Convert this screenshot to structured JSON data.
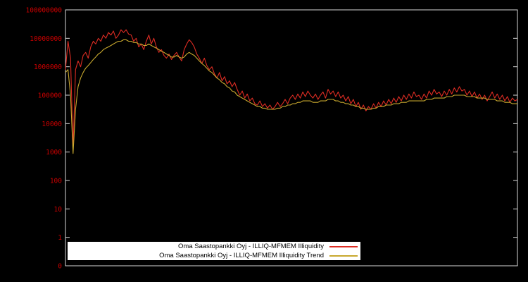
{
  "window": {
    "background_color": "#000000"
  },
  "chart_data": {
    "type": "line",
    "title": "",
    "xlabel": "",
    "ylabel": "",
    "yscale": "log",
    "grid": false,
    "legend_position": "bottom-center",
    "axis_label_color": "#cc0000",
    "plot_border_color": "#d9d9d9",
    "yticks": [
      "100000000",
      "10000000",
      "1000000",
      "100000",
      "10000",
      "1000",
      "100",
      "10",
      "1",
      "0"
    ],
    "xticks": [],
    "series": [
      {
        "name": "Oma Saastopankki Oyj - ILLIQ-MFMEM Illiquidity",
        "color": "#dd2c23",
        "values": [
          790000.0,
          7900000.0,
          2000000.0,
          1300.0,
          790000.0,
          1600000.0,
          1000000.0,
          2500000.0,
          3200000.0,
          2000000.0,
          5000000.0,
          7900000.0,
          6300000.0,
          10000000.0,
          7900000.0,
          13000000.0,
          10000000.0,
          16000000.0,
          13000000.0,
          18000000.0,
          10000000.0,
          13000000.0,
          20000000.0,
          16000000.0,
          20000000.0,
          14000000.0,
          13000000.0,
          7900000.0,
          10000000.0,
          5000000.0,
          6300000.0,
          4000000.0,
          7900000.0,
          13000000.0,
          6300000.0,
          10000000.0,
          5000000.0,
          3200000.0,
          4000000.0,
          2500000.0,
          2000000.0,
          2800000.0,
          1800000.0,
          2500000.0,
          3200000.0,
          2200000.0,
          1600000.0,
          4000000.0,
          6300000.0,
          8900000.0,
          7100000.0,
          5000000.0,
          2800000.0,
          2000000.0,
          1300000.0,
          2000000.0,
          1100000.0,
          790000.0,
          1000000.0,
          560000.0,
          400000.0,
          630000.0,
          320000.0,
          450000.0,
          250000.0,
          320000.0,
          200000.0,
          280000.0,
          160000.0,
          100000.0,
          140000.0,
          79000.0,
          110000.0,
          63000.0,
          79000.0,
          50000.0,
          45000.0,
          63000.0,
          40000.0,
          50000.0,
          35000.0,
          45000.0,
          32000.0,
          40000.0,
          56000.0,
          40000.0,
          50000.0,
          71000.0,
          50000.0,
          79000.0,
          100000.0,
          71000.0,
          110000.0,
          79000.0,
          130000.0,
          89000.0,
          140000.0,
          100000.0,
          79000.0,
          110000.0,
          71000.0,
          100000.0,
          130000.0,
          79000.0,
          160000.0,
          110000.0,
          140000.0,
          89000.0,
          130000.0,
          79000.0,
          100000.0,
          63000.0,
          89000.0,
          50000.0,
          71000.0,
          40000.0,
          56000.0,
          32000.0,
          45000.0,
          28000.0,
          40000.0,
          32000.0,
          50000.0,
          35000.0,
          56000.0,
          40000.0,
          63000.0,
          45000.0,
          71000.0,
          50000.0,
          79000.0,
          56000.0,
          89000.0,
          63000.0,
          100000.0,
          71000.0,
          110000.0,
          79000.0,
          130000.0,
          89000.0,
          100000.0,
          71000.0,
          110000.0,
          79000.0,
          140000.0,
          100000.0,
          160000.0,
          110000.0,
          130000.0,
          89000.0,
          140000.0,
          100000.0,
          160000.0,
          110000.0,
          180000.0,
          130000.0,
          200000.0,
          140000.0,
          160000.0,
          100000.0,
          140000.0,
          89000.0,
          130000.0,
          79000.0,
          110000.0,
          71000.0,
          100000.0,
          63000.0,
          89000.0,
          130000.0,
          79000.0,
          110000.0,
          71000.0,
          100000.0,
          63000.0,
          89000.0,
          56000.0,
          79000.0,
          63000.0,
          71000.0
        ]
      },
      {
        "name": "Oma Saastopankki Oyj - ILLIQ-MFMEM Illiquidity Trend",
        "color": "#c8a82e",
        "values": [
          630000.0,
          790000.0,
          100000.0,
          890.0,
          32000.0,
          200000.0,
          400000.0,
          630000.0,
          890000.0,
          1100000.0,
          1400000.0,
          1800000.0,
          2200000.0,
          2800000.0,
          3200000.0,
          4000000.0,
          4500000.0,
          5000000.0,
          5600000.0,
          6300000.0,
          7100000.0,
          7900000.0,
          7900000.0,
          8900000.0,
          8900000.0,
          7900000.0,
          7900000.0,
          7100000.0,
          7100000.0,
          6300000.0,
          6300000.0,
          5600000.0,
          5600000.0,
          6300000.0,
          5600000.0,
          5000000.0,
          4500000.0,
          4000000.0,
          3500000.0,
          3200000.0,
          2800000.0,
          2500000.0,
          2200000.0,
          2200000.0,
          2500000.0,
          2200000.0,
          2000000.0,
          2200000.0,
          2800000.0,
          3200000.0,
          2800000.0,
          2500000.0,
          2000000.0,
          1600000.0,
          1300000.0,
          1100000.0,
          890000.0,
          710000.0,
          630000.0,
          500000.0,
          400000.0,
          350000.0,
          280000.0,
          250000.0,
          200000.0,
          180000.0,
          140000.0,
          130000.0,
          100000.0,
          89000.0,
          79000.0,
          71000.0,
          63000.0,
          56000.0,
          50000.0,
          45000.0,
          40000.0,
          40000.0,
          35000.0,
          35000.0,
          32000.0,
          32000.0,
          32000.0,
          32000.0,
          35000.0,
          35000.0,
          40000.0,
          40000.0,
          45000.0,
          45000.0,
          50000.0,
          50000.0,
          56000.0,
          56000.0,
          63000.0,
          63000.0,
          63000.0,
          63000.0,
          56000.0,
          56000.0,
          56000.0,
          63000.0,
          63000.0,
          63000.0,
          71000.0,
          71000.0,
          71000.0,
          63000.0,
          63000.0,
          56000.0,
          56000.0,
          50000.0,
          50000.0,
          45000.0,
          45000.0,
          40000.0,
          40000.0,
          35000.0,
          35000.0,
          32000.0,
          32000.0,
          32000.0,
          35000.0,
          35000.0,
          40000.0,
          40000.0,
          40000.0,
          45000.0,
          45000.0,
          45000.0,
          50000.0,
          50000.0,
          50000.0,
          56000.0,
          56000.0,
          56000.0,
          63000.0,
          63000.0,
          63000.0,
          63000.0,
          63000.0,
          63000.0,
          63000.0,
          71000.0,
          71000.0,
          71000.0,
          79000.0,
          79000.0,
          79000.0,
          79000.0,
          79000.0,
          89000.0,
          89000.0,
          89000.0,
          100000.0,
          100000.0,
          100000.0,
          100000.0,
          100000.0,
          89000.0,
          89000.0,
          89000.0,
          89000.0,
          79000.0,
          79000.0,
          79000.0,
          79000.0,
          71000.0,
          71000.0,
          71000.0,
          71000.0,
          63000.0,
          63000.0,
          63000.0,
          56000.0,
          56000.0,
          56000.0,
          50000.0,
          50000.0,
          50000.0
        ]
      }
    ],
    "legend_text_color": "#000000",
    "legend_background": "#ffffff"
  }
}
